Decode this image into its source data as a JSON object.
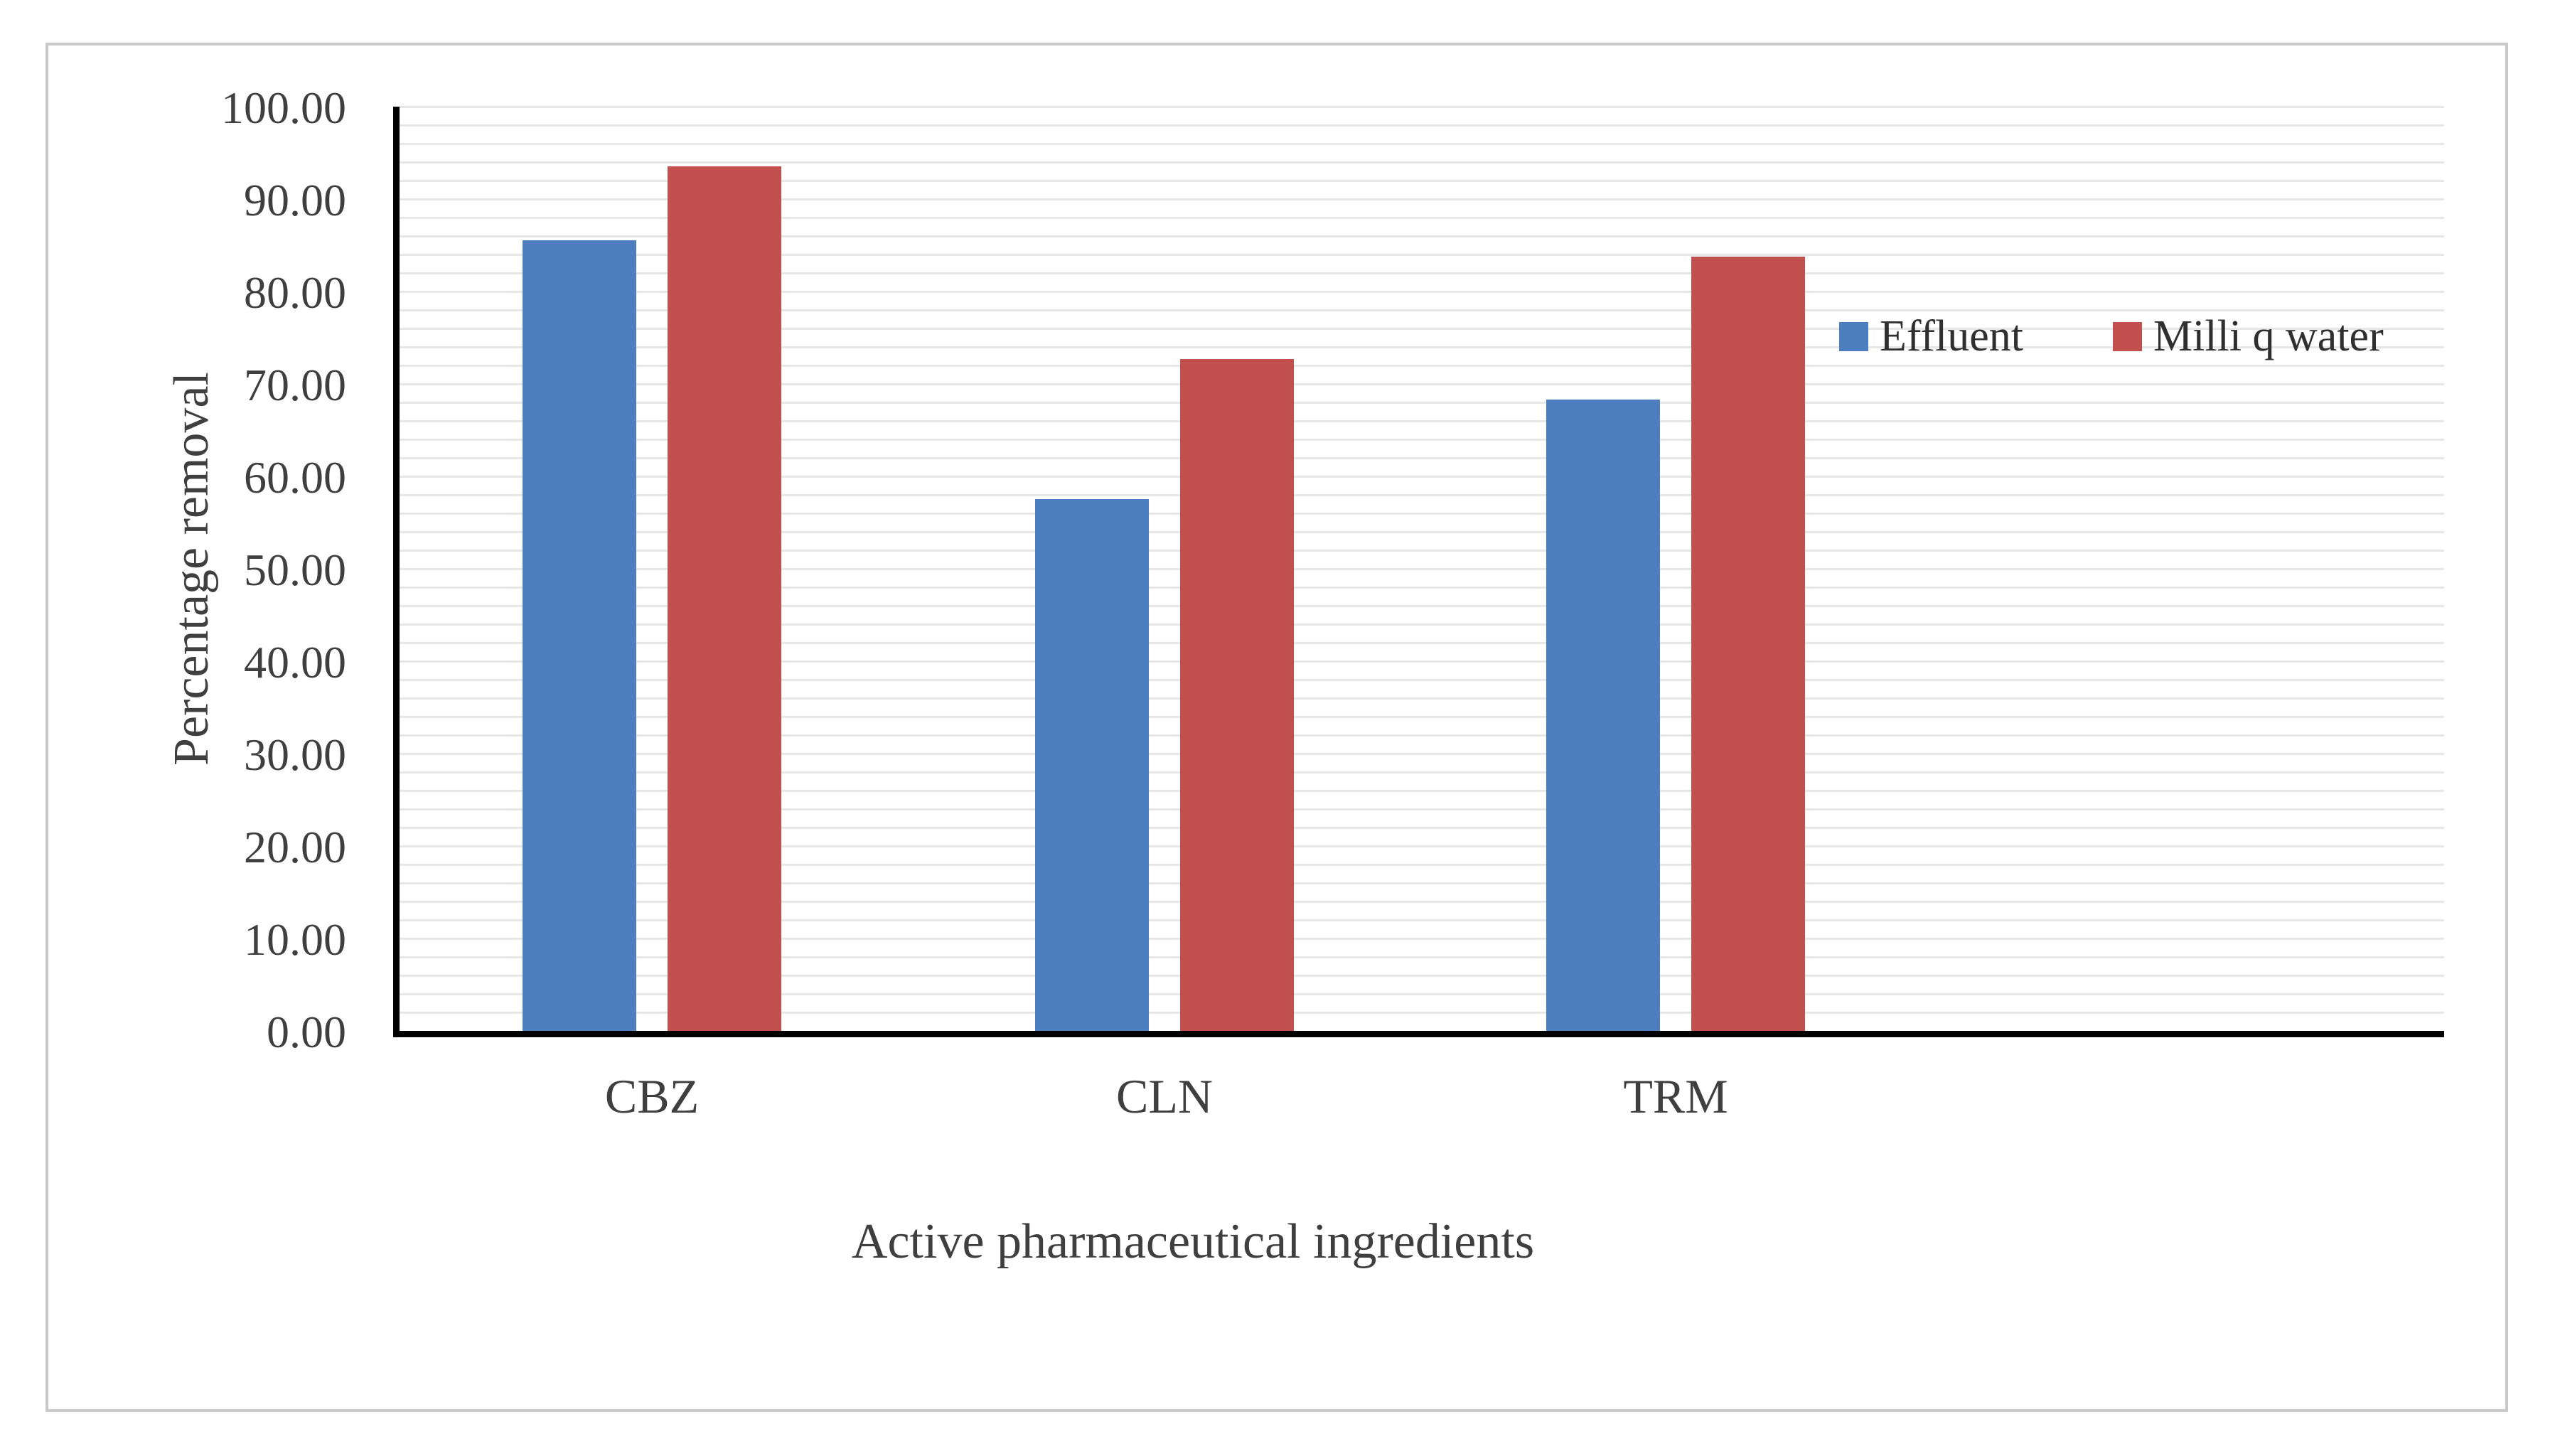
{
  "chart_data": {
    "type": "bar",
    "categories": [
      "CBZ",
      "CLN",
      "TRM"
    ],
    "series": [
      {
        "name": "Effluent",
        "color": "#4D7EBF",
        "values": [
          85.5,
          57.5,
          68.3
        ]
      },
      {
        "name": "Milli q water",
        "color": "#C1504E",
        "values": [
          93.5,
          72.7,
          83.8
        ]
      }
    ],
    "xlabel": "Active pharmaceutical ingredients",
    "ylabel": "Percentage removal",
    "ylim": [
      0,
      100
    ],
    "y_major_step": 10,
    "y_minor_step": 2,
    "tick_decimals": 2,
    "grid": "minor-horizontal-only",
    "legend_position": "inside-right",
    "colors": {
      "gridline": "#e7e7e7",
      "axis_line": "#000000",
      "text": "#3f3f3f",
      "frame_border": "#c9c9c9",
      "background": "#ffffff"
    }
  }
}
